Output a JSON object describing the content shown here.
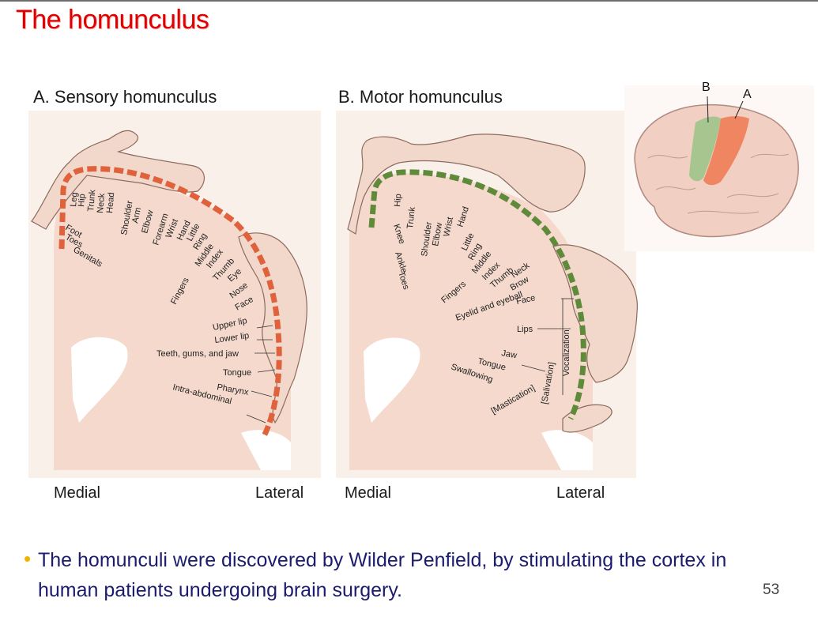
{
  "slide": {
    "title": "The homunculus",
    "page_number": "53",
    "bullet_text": "The homunculi were discovered by Wilder Penfield, by stimulating the cortex in human patients undergoing brain surgery."
  },
  "sensory": {
    "title": "A. Sensory homunculus",
    "medial": "Medial",
    "lateral": "Lateral",
    "color": "#e0623c",
    "labels": {
      "leg": "Leg",
      "hip": "Hip",
      "trunk": "Trunk",
      "neck": "Neck",
      "head": "Head",
      "shoulder": "Shoulder",
      "arm": "Arm",
      "elbow": "Elbow",
      "forearm": "Forearm",
      "wrist": "Wrist",
      "hand": "Hand",
      "little": "Little",
      "ring": "Ring",
      "middle": "Middle",
      "index": "Index",
      "thumb": "Thumb",
      "eye": "Eye",
      "nose": "Nose",
      "face": "Face",
      "fingers": "Fingers",
      "foot": "Foot",
      "toes": "Toes",
      "genitals": "Genitals",
      "upper_lip": "Upper lip",
      "lower_lip": "Lower lip",
      "teeth": "Teeth, gums, and jaw",
      "tongue": "Tongue",
      "pharynx": "Pharynx",
      "intra": "Intra-abdominal"
    }
  },
  "motor": {
    "title": "B. Motor homunculus",
    "medial": "Medial",
    "lateral": "Lateral",
    "color": "#5e8a3a",
    "labels": {
      "hip": "Hip",
      "trunk": "Trunk",
      "shoulder": "Shoulder",
      "elbow": "Elbow",
      "wrist": "Wrist",
      "hand": "Hand",
      "knee": "Knee",
      "ankle": "Ankle",
      "toes": "Toes",
      "little": "Little",
      "ring": "Ring",
      "middle": "Middle",
      "index": "Index",
      "thumb": "Thumb",
      "neck": "Neck",
      "brow": "Brow",
      "fingers": "Fingers",
      "eyelid": "Eyelid and eyeball",
      "face": "Face",
      "lips": "Lips",
      "jaw": "Jaw",
      "tongue": "Tongue",
      "swallowing": "Swallowing",
      "mastication": "[Mastication]",
      "salivation": "[Salivation]",
      "vocalization": "Vocalization"
    }
  },
  "brain_inset": {
    "label_b": "B",
    "label_a": "A"
  }
}
